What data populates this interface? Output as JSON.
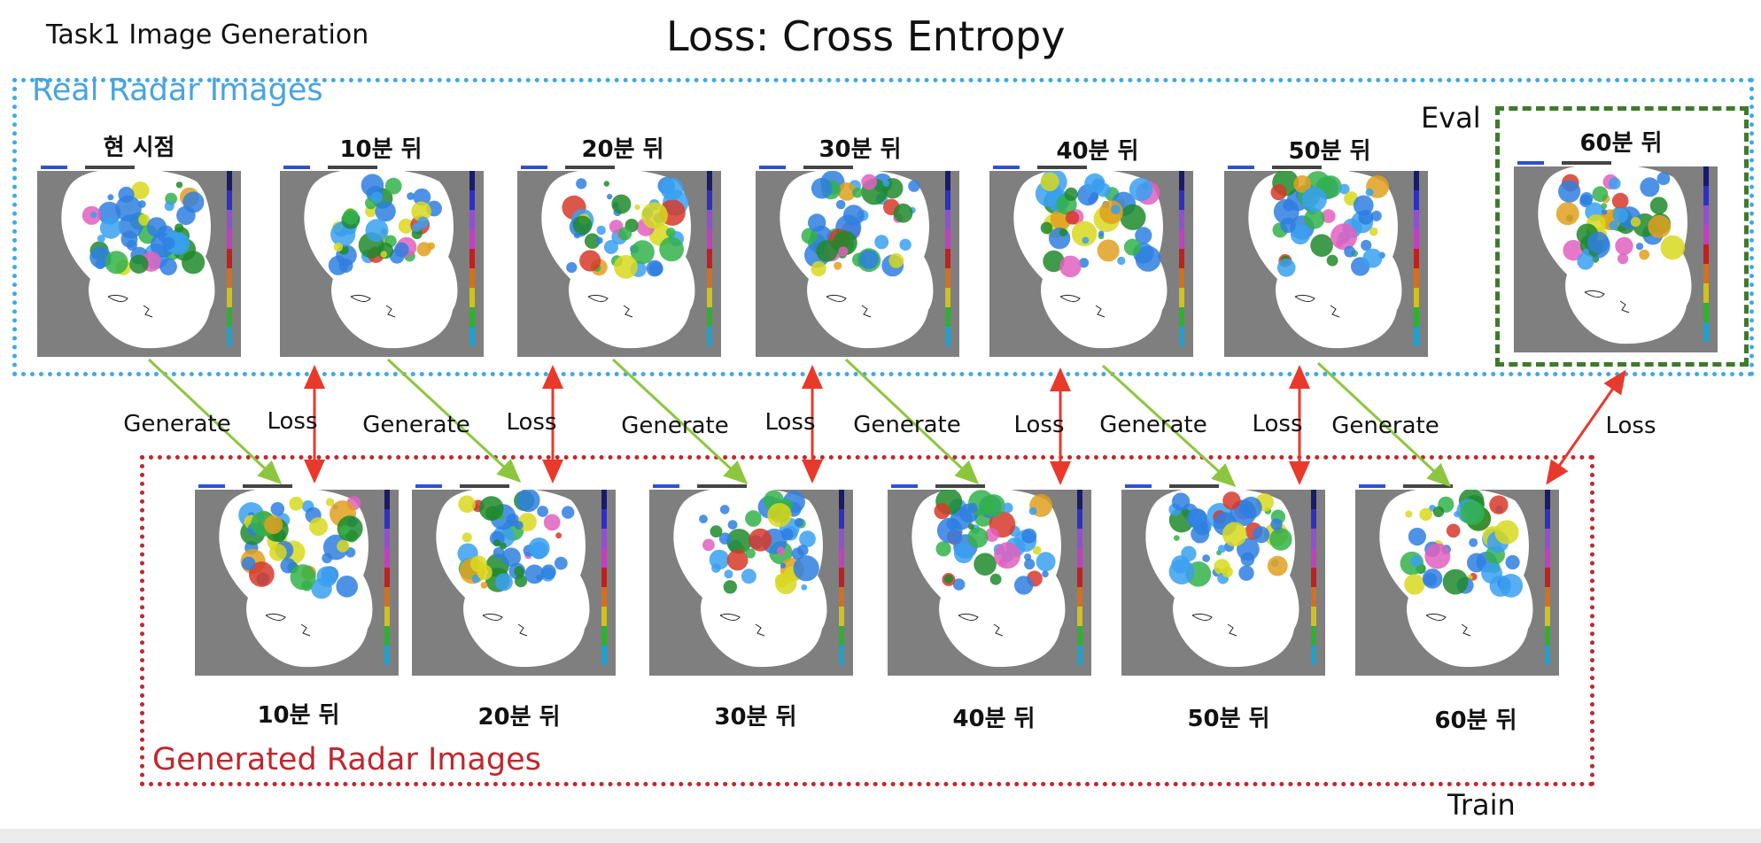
{
  "titles": {
    "task": "Task1 Image Generation",
    "loss": "Loss: Cross Entropy"
  },
  "groups": {
    "real": "Real Radar Images",
    "generated": "Generated Radar Images",
    "eval": "Eval",
    "train": "Train"
  },
  "real_captions": [
    "현 시점",
    "10분 뒤",
    "20분 뒤",
    "30분 뒤",
    "40분 뒤",
    "50분 뒤",
    "60분 뒤"
  ],
  "generated_captions": [
    "10분 뒤",
    "20분 뒤",
    "30분 뒤",
    "40분 뒤",
    "50분 뒤",
    "60분 뒤"
  ],
  "arrow_labels": {
    "generate": "Generate",
    "loss": "Loss"
  },
  "colors": {
    "real_box": "#3fa9e6",
    "generated_box": "#c0272d",
    "eval_box": "#3f7a2b",
    "generate_arrow": "#8cc63f",
    "loss_arrow": "#e8392b"
  }
}
